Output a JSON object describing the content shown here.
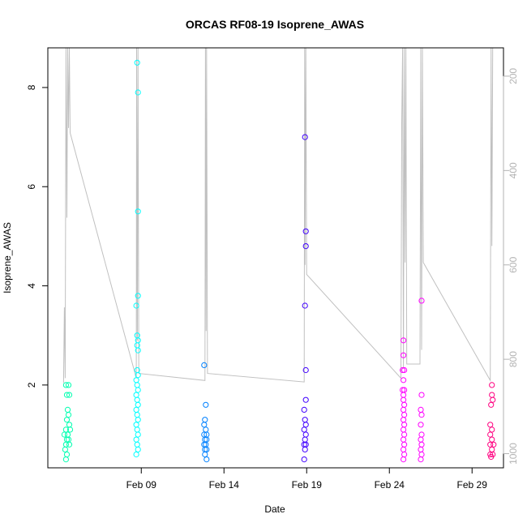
{
  "chart_data": {
    "type": "scatter",
    "title": "ORCAS RF08-19 Isoprene_AWAS",
    "xlabel": "Date",
    "ylabel": "Isoprene_AWAS",
    "x_ticks": [
      "Feb 09",
      "Feb 14",
      "Feb 19",
      "Feb 24",
      "Feb 29"
    ],
    "x_tick_values": [
      9,
      14,
      19,
      24,
      29
    ],
    "xlim": [
      3.35,
      30.9
    ],
    "y_ticks": [
      2,
      4,
      6,
      8
    ],
    "ylim": [
      0.33,
      8.8
    ],
    "y2_ticks": [
      200,
      400,
      600,
      800,
      1000
    ],
    "y2lim": [
      1030,
      140
    ],
    "y2_inverted": true,
    "grid": false,
    "series": [
      {
        "color": "#00FFB0",
        "points": [
          [
            4.45,
            2.0
          ],
          [
            4.6,
            2.0
          ],
          [
            4.5,
            1.8
          ],
          [
            4.65,
            1.8
          ],
          [
            4.55,
            1.5
          ],
          [
            4.6,
            1.4
          ],
          [
            4.5,
            1.3
          ],
          [
            4.65,
            1.2
          ],
          [
            4.45,
            1.1
          ],
          [
            4.7,
            1.1
          ],
          [
            4.35,
            1.0
          ],
          [
            4.55,
            1.0
          ],
          [
            4.5,
            0.9
          ],
          [
            4.6,
            0.9
          ],
          [
            4.45,
            0.8
          ],
          [
            4.65,
            0.8
          ],
          [
            4.4,
            0.7
          ],
          [
            4.5,
            0.6
          ],
          [
            4.45,
            0.5
          ]
        ]
      },
      {
        "color": "#00FFFF",
        "points": [
          [
            8.75,
            8.5
          ],
          [
            8.8,
            7.9
          ],
          [
            8.8,
            5.5
          ],
          [
            8.8,
            3.8
          ],
          [
            8.7,
            3.6
          ],
          [
            8.75,
            3.0
          ],
          [
            8.8,
            2.9
          ],
          [
            8.75,
            2.8
          ],
          [
            8.8,
            2.7
          ],
          [
            8.75,
            2.3
          ],
          [
            8.8,
            2.2
          ],
          [
            8.7,
            2.1
          ],
          [
            8.75,
            2.0
          ],
          [
            8.8,
            1.9
          ],
          [
            8.7,
            1.8
          ],
          [
            8.75,
            1.7
          ],
          [
            8.8,
            1.6
          ],
          [
            8.7,
            1.5
          ],
          [
            8.75,
            1.4
          ],
          [
            8.8,
            1.3
          ],
          [
            8.7,
            1.2
          ],
          [
            8.75,
            1.1
          ],
          [
            8.8,
            1.0
          ],
          [
            8.7,
            0.9
          ],
          [
            8.75,
            0.8
          ],
          [
            8.8,
            0.7
          ],
          [
            8.7,
            0.6
          ]
        ]
      },
      {
        "color": "#0080FF",
        "points": [
          [
            12.8,
            2.4
          ],
          [
            12.9,
            1.6
          ],
          [
            12.85,
            1.3
          ],
          [
            12.8,
            1.2
          ],
          [
            12.9,
            1.1
          ],
          [
            12.8,
            1.0
          ],
          [
            12.95,
            1.0
          ],
          [
            12.85,
            0.9
          ],
          [
            12.95,
            0.9
          ],
          [
            12.8,
            0.8
          ],
          [
            12.9,
            0.8
          ],
          [
            12.85,
            0.7
          ],
          [
            12.95,
            0.7
          ],
          [
            12.85,
            0.6
          ],
          [
            12.95,
            0.5
          ]
        ]
      },
      {
        "color": "#4000FF",
        "points": [
          [
            18.9,
            7.0
          ],
          [
            18.95,
            5.1
          ],
          [
            18.95,
            4.8
          ],
          [
            18.9,
            3.6
          ],
          [
            18.95,
            2.3
          ],
          [
            18.95,
            1.7
          ],
          [
            18.85,
            1.5
          ],
          [
            18.9,
            1.3
          ],
          [
            18.95,
            1.2
          ],
          [
            18.85,
            1.1
          ],
          [
            18.95,
            1.0
          ],
          [
            18.9,
            0.9
          ],
          [
            18.85,
            0.8
          ],
          [
            18.95,
            0.8
          ],
          [
            18.9,
            0.7
          ],
          [
            18.85,
            0.5
          ]
        ]
      },
      {
        "color": "#FF00FF",
        "points": [
          [
            24.85,
            2.9
          ],
          [
            24.85,
            2.6
          ],
          [
            24.8,
            2.3
          ],
          [
            24.9,
            2.3
          ],
          [
            24.85,
            2.1
          ],
          [
            24.8,
            1.9
          ],
          [
            24.9,
            1.9
          ],
          [
            24.85,
            1.8
          ],
          [
            24.85,
            1.7
          ],
          [
            24.9,
            1.6
          ],
          [
            24.85,
            1.5
          ],
          [
            24.9,
            1.4
          ],
          [
            24.85,
            1.3
          ],
          [
            24.9,
            1.2
          ],
          [
            24.85,
            1.1
          ],
          [
            24.9,
            1.0
          ],
          [
            24.85,
            0.9
          ],
          [
            24.9,
            0.8
          ],
          [
            24.85,
            0.7
          ],
          [
            24.9,
            0.6
          ],
          [
            24.85,
            0.5
          ],
          [
            25.95,
            3.7
          ],
          [
            25.95,
            1.8
          ],
          [
            25.9,
            1.5
          ],
          [
            25.95,
            1.4
          ],
          [
            25.9,
            1.2
          ],
          [
            25.95,
            1.0
          ],
          [
            25.9,
            0.9
          ],
          [
            25.95,
            0.8
          ],
          [
            25.9,
            0.7
          ],
          [
            25.95,
            0.6
          ],
          [
            25.9,
            0.5
          ]
        ]
      },
      {
        "color": "#FF0080",
        "points": [
          [
            30.2,
            2.0
          ],
          [
            30.2,
            1.8
          ],
          [
            30.25,
            1.7
          ],
          [
            30.15,
            1.6
          ],
          [
            30.1,
            1.2
          ],
          [
            30.2,
            1.1
          ],
          [
            30.1,
            1.0
          ],
          [
            30.2,
            0.9
          ],
          [
            30.1,
            0.8
          ],
          [
            30.3,
            0.8
          ],
          [
            30.2,
            0.7
          ],
          [
            30.1,
            0.6
          ],
          [
            30.25,
            0.6
          ],
          [
            30.15,
            0.55
          ]
        ]
      }
    ],
    "pressure_trace": {
      "color": "#C0C0C0",
      "axis": "y2",
      "points": [
        [
          4.3,
          850
        ],
        [
          4.35,
          690
        ],
        [
          4.4,
          840
        ],
        [
          4.45,
          140
        ],
        [
          4.5,
          500
        ],
        [
          4.55,
          140
        ],
        [
          4.6,
          310
        ],
        [
          4.65,
          140
        ],
        [
          4.7,
          320
        ],
        [
          8.7,
          840
        ],
        [
          8.72,
          140
        ],
        [
          8.76,
          760
        ],
        [
          8.8,
          140
        ],
        [
          8.85,
          830
        ],
        [
          12.85,
          845
        ],
        [
          12.88,
          140
        ],
        [
          12.92,
          740
        ],
        [
          12.95,
          140
        ],
        [
          13.0,
          830
        ],
        [
          18.85,
          848
        ],
        [
          18.88,
          140
        ],
        [
          18.9,
          600
        ],
        [
          18.95,
          140
        ],
        [
          19.0,
          620
        ],
        [
          24.7,
          840
        ],
        [
          24.75,
          300
        ],
        [
          24.8,
          140
        ],
        [
          24.85,
          820
        ],
        [
          24.9,
          140
        ],
        [
          24.95,
          595
        ],
        [
          25.0,
          140
        ],
        [
          25.05,
          810
        ],
        [
          25.85,
          810
        ],
        [
          25.9,
          140
        ],
        [
          25.95,
          780
        ],
        [
          26.0,
          140
        ],
        [
          26.05,
          595
        ],
        [
          30.1,
          845
        ],
        [
          30.15,
          140
        ],
        [
          30.2,
          560
        ],
        [
          30.25,
          140
        ]
      ]
    }
  }
}
